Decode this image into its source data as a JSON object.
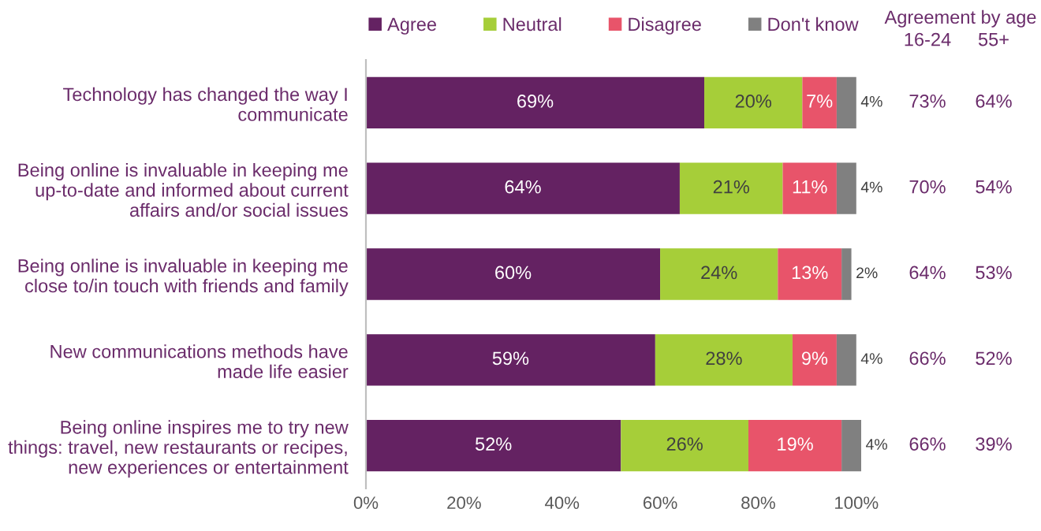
{
  "chart_data": [
    {
      "type": "bar",
      "orientation": "horizontal",
      "stacked": true,
      "grid": false,
      "legend": "top",
      "categories": [
        "Technology has changed the way I communicate",
        "Being online is invaluable in keeping me up-to-date and informed about current affairs and/or social issues",
        "Being online is invaluable in keeping me close to/in touch with friends and family",
        "New communications methods have made life easier",
        "Being online inspires me to try new things: travel, new restaurants or recipes, new experiences or entertainment"
      ],
      "series": [
        {
          "name": "Agree",
          "color": "#642262",
          "values": [
            69,
            64,
            60,
            59,
            52
          ],
          "value_labels": [
            "69%",
            "64%",
            "60%",
            "59%",
            "52%"
          ]
        },
        {
          "name": "Neutral",
          "color": "#a6ce39",
          "values": [
            20,
            21,
            24,
            28,
            26
          ],
          "value_labels": [
            "20%",
            "21%",
            "24%",
            "28%",
            "26%"
          ]
        },
        {
          "name": "Disagree",
          "color": "#e8546a",
          "values": [
            7,
            11,
            13,
            9,
            19
          ],
          "value_labels": [
            "7%",
            "11%",
            "13%",
            "9%",
            "19%"
          ]
        },
        {
          "name": "Don't know",
          "color": "#808080",
          "values": [
            4,
            4,
            2,
            4,
            4
          ],
          "value_labels": [
            "4%",
            "4%",
            "2%",
            "4%",
            "4%"
          ]
        }
      ],
      "xlim": [
        0,
        101
      ],
      "xticks": [
        {
          "value": 0,
          "label": "0%"
        },
        {
          "value": 20,
          "label": "20%"
        },
        {
          "value": 40,
          "label": "40%"
        },
        {
          "value": 60,
          "label": "60%"
        },
        {
          "value": 80,
          "label": "80%"
        },
        {
          "value": 100,
          "label": "100%"
        }
      ]
    },
    {
      "type": "heatmap",
      "title": "Agreement by age",
      "categories": [
        "16-24",
        "55+"
      ],
      "y_categories": [
        null,
        null,
        null,
        null,
        null
      ],
      "cells": [
        [
          73,
          64
        ],
        [
          70,
          54
        ],
        [
          64,
          53
        ],
        [
          66,
          52
        ],
        [
          66,
          39
        ]
      ],
      "cell_labels": [
        [
          "73%",
          "64%"
        ],
        [
          "70%",
          "54%"
        ],
        [
          "64%",
          "53%"
        ],
        [
          "66%",
          "52%"
        ],
        [
          "66%",
          "39%"
        ]
      ]
    }
  ]
}
